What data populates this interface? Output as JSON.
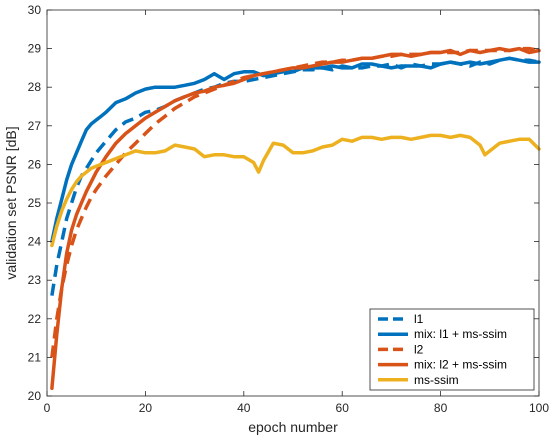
{
  "chart_data": {
    "type": "line",
    "title": "",
    "xlabel": "epoch number",
    "ylabel": "validation set PSNR [dB]",
    "xlim": [
      0,
      100
    ],
    "ylim": [
      20,
      30
    ],
    "xticks": [
      0,
      20,
      40,
      60,
      80,
      100
    ],
    "yticks": [
      20,
      21,
      22,
      23,
      24,
      25,
      26,
      27,
      28,
      29,
      30
    ],
    "grid": false,
    "legend_position": "bottom-right",
    "series": [
      {
        "name": "l1",
        "color": "#0072BD",
        "dash": "dashed",
        "x": [
          1,
          2,
          3,
          4,
          5,
          6,
          7,
          8,
          9,
          10,
          12,
          14,
          16,
          18,
          20,
          22,
          24,
          26,
          28,
          30,
          32,
          34,
          36,
          38,
          40,
          42,
          44,
          46,
          48,
          50,
          52,
          54,
          56,
          58,
          60,
          62,
          64,
          66,
          68,
          70,
          72,
          74,
          76,
          78,
          80,
          82,
          84,
          86,
          88,
          90,
          92,
          94,
          96,
          98,
          100
        ],
        "y": [
          22.6,
          23.4,
          24.0,
          24.6,
          25.0,
          25.4,
          25.7,
          25.9,
          26.1,
          26.3,
          26.6,
          26.9,
          27.1,
          27.2,
          27.35,
          27.4,
          27.5,
          27.65,
          27.75,
          27.85,
          27.95,
          28.0,
          28.1,
          28.15,
          28.15,
          28.2,
          28.25,
          28.3,
          28.35,
          28.4,
          28.45,
          28.45,
          28.5,
          28.45,
          28.55,
          28.5,
          28.5,
          28.55,
          28.55,
          28.6,
          28.5,
          28.6,
          28.55,
          28.6,
          28.6,
          28.65,
          28.6,
          28.55,
          28.65,
          28.6,
          28.7,
          28.75,
          28.7,
          28.7,
          28.65
        ]
      },
      {
        "name": "mix: l1 + ms-ssim",
        "color": "#0072BD",
        "dash": "solid",
        "x": [
          1,
          2,
          3,
          4,
          5,
          6,
          7,
          8,
          9,
          10,
          11,
          12,
          14,
          16,
          18,
          20,
          22,
          24,
          26,
          28,
          30,
          32,
          34,
          36,
          38,
          40,
          42,
          44,
          46,
          48,
          50,
          52,
          54,
          56,
          58,
          60,
          62,
          64,
          66,
          68,
          70,
          72,
          74,
          76,
          78,
          80,
          82,
          84,
          86,
          88,
          90,
          92,
          94,
          96,
          98,
          100
        ],
        "y": [
          24.0,
          24.6,
          25.1,
          25.6,
          26.0,
          26.3,
          26.6,
          26.9,
          27.05,
          27.15,
          27.25,
          27.35,
          27.6,
          27.7,
          27.85,
          27.95,
          28.0,
          28.0,
          28.0,
          28.05,
          28.1,
          28.2,
          28.35,
          28.2,
          28.35,
          28.4,
          28.4,
          28.3,
          28.35,
          28.4,
          28.4,
          28.5,
          28.5,
          28.5,
          28.55,
          28.5,
          28.5,
          28.6,
          28.6,
          28.55,
          28.5,
          28.55,
          28.55,
          28.55,
          28.5,
          28.6,
          28.65,
          28.6,
          28.65,
          28.6,
          28.65,
          28.7,
          28.75,
          28.7,
          28.65,
          28.65
        ]
      },
      {
        "name": "l2",
        "color": "#D95319",
        "dash": "dashed",
        "x": [
          1,
          2,
          3,
          4,
          5,
          6,
          7,
          8,
          9,
          10,
          12,
          14,
          16,
          18,
          20,
          22,
          24,
          26,
          28,
          30,
          32,
          34,
          36,
          38,
          40,
          42,
          44,
          46,
          48,
          50,
          52,
          54,
          56,
          58,
          60,
          62,
          64,
          66,
          68,
          70,
          72,
          74,
          76,
          78,
          80,
          82,
          84,
          86,
          88,
          90,
          92,
          94,
          96,
          98,
          100
        ],
        "y": [
          21.0,
          22.0,
          22.8,
          23.4,
          23.9,
          24.3,
          24.6,
          24.9,
          25.15,
          25.35,
          25.7,
          26.0,
          26.3,
          26.55,
          26.8,
          27.05,
          27.25,
          27.45,
          27.6,
          27.75,
          27.85,
          27.95,
          28.05,
          28.15,
          28.25,
          28.3,
          28.35,
          28.4,
          28.45,
          28.5,
          28.55,
          28.6,
          28.65,
          28.65,
          28.7,
          28.7,
          28.75,
          28.75,
          28.8,
          28.8,
          28.85,
          28.85,
          28.85,
          28.9,
          28.9,
          28.9,
          28.9,
          28.95,
          28.95,
          28.95,
          28.95,
          28.95,
          29.0,
          29.0,
          28.95
        ]
      },
      {
        "name": "mix: l2 + ms-ssim",
        "color": "#D95319",
        "dash": "solid",
        "x": [
          1,
          2,
          3,
          4,
          5,
          6,
          7,
          8,
          9,
          10,
          12,
          14,
          16,
          18,
          20,
          22,
          24,
          26,
          28,
          30,
          32,
          34,
          36,
          38,
          40,
          42,
          44,
          46,
          48,
          50,
          52,
          54,
          56,
          58,
          60,
          62,
          64,
          66,
          68,
          70,
          72,
          74,
          76,
          78,
          80,
          82,
          84,
          86,
          88,
          90,
          92,
          94,
          96,
          98,
          100
        ],
        "y": [
          20.2,
          21.6,
          22.8,
          23.7,
          24.3,
          24.7,
          25.0,
          25.3,
          25.55,
          25.8,
          26.2,
          26.55,
          26.8,
          27.0,
          27.2,
          27.35,
          27.5,
          27.65,
          27.75,
          27.85,
          27.9,
          28.0,
          28.05,
          28.1,
          28.2,
          28.3,
          28.35,
          28.4,
          28.45,
          28.5,
          28.5,
          28.55,
          28.6,
          28.65,
          28.65,
          28.7,
          28.75,
          28.75,
          28.8,
          28.85,
          28.85,
          28.8,
          28.85,
          28.9,
          28.9,
          28.95,
          28.85,
          28.95,
          28.9,
          28.95,
          29.0,
          28.95,
          29.0,
          28.9,
          28.95
        ]
      },
      {
        "name": "ms-ssim",
        "color": "#EDB120",
        "dash": "solid",
        "x": [
          1,
          2,
          3,
          4,
          5,
          6,
          7,
          8,
          9,
          10,
          12,
          14,
          16,
          18,
          20,
          22,
          24,
          26,
          28,
          30,
          32,
          34,
          36,
          38,
          40,
          42,
          43,
          44,
          46,
          48,
          50,
          52,
          54,
          56,
          58,
          60,
          62,
          64,
          66,
          68,
          70,
          72,
          74,
          76,
          78,
          80,
          82,
          84,
          86,
          88,
          89,
          90,
          92,
          94,
          96,
          98,
          100
        ],
        "y": [
          23.9,
          24.4,
          24.8,
          25.1,
          25.35,
          25.55,
          25.7,
          25.8,
          25.9,
          25.95,
          26.05,
          26.15,
          26.25,
          26.35,
          26.3,
          26.3,
          26.35,
          26.5,
          26.45,
          26.4,
          26.2,
          26.25,
          26.25,
          26.2,
          26.2,
          26.05,
          25.8,
          26.1,
          26.55,
          26.5,
          26.3,
          26.3,
          26.35,
          26.45,
          26.5,
          26.65,
          26.6,
          26.7,
          26.7,
          26.65,
          26.7,
          26.7,
          26.65,
          26.7,
          26.75,
          26.75,
          26.7,
          26.75,
          26.7,
          26.5,
          26.25,
          26.35,
          26.55,
          26.6,
          26.65,
          26.65,
          26.4
        ]
      }
    ]
  }
}
